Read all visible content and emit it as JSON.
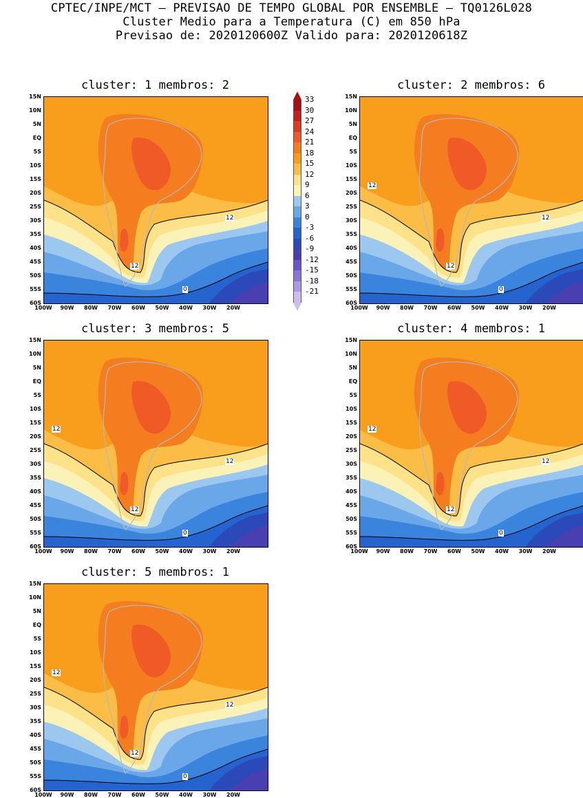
{
  "header": {
    "line1": "CPTEC/INPE/MCT – PREVISAO DE TEMPO GLOBAL POR ENSEMBLE – TQ0126L028",
    "line2": "Cluster Medio para a Temperatura (C) em 850 hPa",
    "line3": "Previsao de: 2020120600Z    Valido para: 2020120618Z"
  },
  "axes": {
    "y_labels": [
      "15N",
      "10N",
      "5N",
      "EQ",
      "5S",
      "10S",
      "15S",
      "20S",
      "25S",
      "30S",
      "35S",
      "40S",
      "45S",
      "50S",
      "55S",
      "60S"
    ],
    "x_labels": [
      "100W",
      "90W",
      "80W",
      "70W",
      "60W",
      "50W",
      "40W",
      "30W",
      "20W"
    ]
  },
  "legend": {
    "labels": [
      "33",
      "30",
      "27",
      "24",
      "21",
      "18",
      "15",
      "12",
      "9",
      "6",
      "3",
      "0",
      "-3",
      "-6",
      "-9",
      "-12",
      "-15",
      "-18",
      "-21"
    ],
    "colors": [
      "#a50f15",
      "#c5201c",
      "#de3a24",
      "#ef5a26",
      "#f47d20",
      "#f99d1c",
      "#fbbd46",
      "#fde289",
      "#fbf2b8",
      "#9cc8f0",
      "#6aa7e8",
      "#3a84de",
      "#2563cf",
      "#2b49b8",
      "#4a3fb0",
      "#6a55c8",
      "#8a74d8",
      "#ab98e4",
      "#cbbff0"
    ]
  },
  "panels": [
    {
      "title": "cluster: 1   membros: 2",
      "contour_label_12a": "12",
      "contour_label_12b": "12",
      "contour_label_0": "0"
    },
    {
      "title": "cluster: 2   membros: 6",
      "contour_label_12a": "12",
      "contour_label_12b": "12",
      "contour_label_0": "0",
      "contour_label_12c": "12"
    },
    {
      "title": "cluster: 3   membros: 5",
      "contour_label_12a": "12",
      "contour_label_12b": "12",
      "contour_label_0": "0",
      "contour_label_12c": "12"
    },
    {
      "title": "cluster: 4   membros: 1",
      "contour_label_12a": "12",
      "contour_label_12b": "12",
      "contour_label_0": "0",
      "contour_label_12c": "12"
    },
    {
      "title": "cluster: 5   membros: 1",
      "contour_label_12a": "12",
      "contour_label_12b": "12",
      "contour_label_0": "0",
      "contour_label_12c": "12"
    }
  ]
}
